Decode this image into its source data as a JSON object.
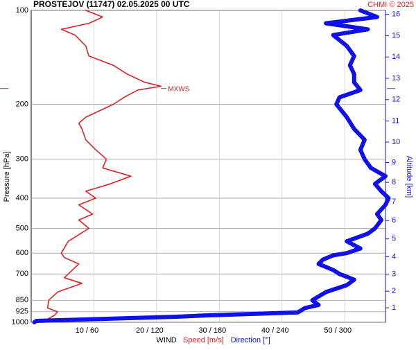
{
  "chart_data": {
    "type": "profile",
    "title": "PROSTEJOV (11747)    02.05.2025 00 UTC",
    "credit": "CHMI © 2025",
    "ylabel": "Pressure [hPa]",
    "y2label": "Altitude [km]",
    "xlabel": "WIND",
    "ylim": [
      1000,
      100
    ],
    "log_y": true,
    "yticks": [
      100,
      200,
      300,
      400,
      500,
      600,
      700,
      850,
      925,
      1000
    ],
    "y2ticks": [
      1,
      2,
      3,
      4,
      5,
      6,
      7,
      8,
      9,
      10,
      11,
      12,
      13,
      14,
      15,
      16
    ],
    "xlim": [
      0,
      56.5
    ],
    "x2lim": [
      0,
      339
    ],
    "xticks": [
      {
        "value": 10,
        "label": "10 / 60"
      },
      {
        "value": 20,
        "label": "20 / 120"
      },
      {
        "value": 30,
        "label": "30 / 180"
      },
      {
        "value": 40,
        "label": "40 / 240"
      },
      {
        "value": 50,
        "label": "50 / 300"
      }
    ],
    "grid": true,
    "annotation": {
      "text": "MXWS",
      "pressure": 178,
      "color": "#e02020"
    },
    "series": [
      {
        "name": "Speed [m/s]",
        "color": "#e02020",
        "axis": "x",
        "pressure": [
          1000,
          950,
          925,
          900,
          850,
          800,
          750,
          720,
          700,
          650,
          620,
          600,
          550,
          500,
          470,
          450,
          420,
          400,
          380,
          360,
          340,
          320,
          300,
          280,
          260,
          240,
          230,
          220,
          200,
          190,
          180,
          175,
          170,
          160,
          150,
          140,
          130,
          120,
          115,
          110,
          105,
          100
        ],
        "values": [
          1.7,
          3.7,
          4.2,
          2.6,
          2.8,
          4.2,
          8.1,
          5.3,
          5.9,
          7.6,
          5.3,
          4.8,
          5.9,
          9.2,
          7.6,
          9.8,
          7.6,
          10.3,
          8.7,
          12.6,
          15.9,
          11.4,
          12,
          10.3,
          8.7,
          8.1,
          7.6,
          8.7,
          13.1,
          14.8,
          17,
          20.7,
          18.1,
          15.3,
          13.1,
          9.2,
          8.7,
          7,
          4.8,
          9.2,
          11.4,
          8.7
        ]
      },
      {
        "name": "Direction [°]",
        "color": "#1010e8",
        "axis": "x2",
        "pressure": [
          1000,
          990,
          975,
          960,
          950,
          930,
          900,
          880,
          850,
          800,
          760,
          730,
          700,
          680,
          650,
          630,
          610,
          600,
          580,
          550,
          520,
          500,
          470,
          450,
          420,
          400,
          380,
          360,
          340,
          320,
          300,
          280,
          260,
          240,
          220,
          200,
          190,
          180,
          170,
          160,
          150,
          140,
          130,
          120,
          115,
          110,
          105,
          100
        ],
        "values": [
          3,
          5,
          69,
          139,
          169,
          255,
          262,
          275,
          269,
          282,
          302,
          309,
          295,
          289,
          275,
          279,
          289,
          302,
          315,
          302,
          322,
          329,
          335,
          331,
          339,
          342,
          335,
          329,
          339,
          325,
          319,
          315,
          319,
          309,
          302,
          292,
          295,
          315,
          309,
          309,
          305,
          309,
          302,
          289,
          322,
          282,
          331,
          315
        ]
      }
    ]
  }
}
